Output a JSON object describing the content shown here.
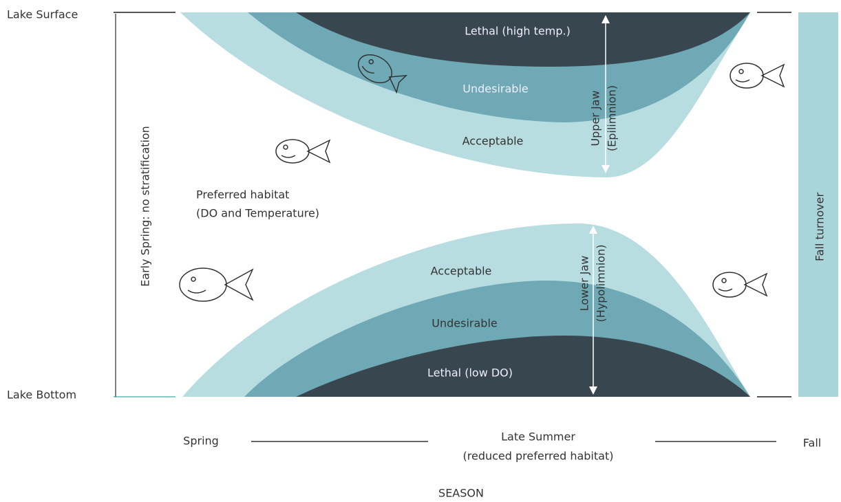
{
  "axis": {
    "top": "Lake Surface",
    "bottom": "Lake Bottom",
    "season_label": "SEASON"
  },
  "seasons": {
    "start": "Spring",
    "middle": "Late Summer",
    "middle_note": "(reduced preferred habitat)",
    "end": "Fall"
  },
  "early_spring": "Early Spring: no stratification",
  "fall_turnover": "Fall turnover",
  "upper_zones": {
    "lethal": "Lethal (high temp.)",
    "undesirable": "Undesirable",
    "acceptable": "Acceptable"
  },
  "lower_zones": {
    "acceptable": "Acceptable",
    "undesirable": "Undesirable",
    "lethal": "Lethal (low DO)"
  },
  "preferred": {
    "line1": "Preferred habitat",
    "line2": "(DO and Temperature)"
  },
  "upper_jaw": {
    "name": "Upper Jaw",
    "note": "(Epilimnion)"
  },
  "lower_jaw": {
    "name": "Lower Jaw",
    "note": "(Hypolimnion)"
  }
}
